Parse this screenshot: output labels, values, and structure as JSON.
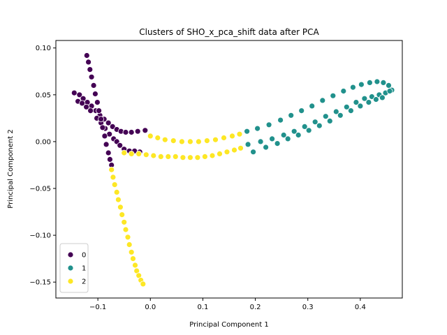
{
  "chart_data": {
    "type": "scatter",
    "title": "Clusters of SHO_x_pca_shift data after PCA",
    "xlabel": "Principal Component 1",
    "ylabel": "Principal Component 2",
    "xlim": [
      -0.18,
      0.48
    ],
    "ylim": [
      -0.167,
      0.108
    ],
    "xticks": [
      -0.1,
      0.0,
      0.1,
      0.2,
      0.3,
      0.4
    ],
    "xtick_labels": [
      "−0.1",
      "0.0",
      "0.1",
      "0.2",
      "0.3",
      "0.4"
    ],
    "yticks": [
      -0.15,
      -0.1,
      -0.05,
      0.0,
      0.05,
      0.1
    ],
    "ytick_labels": [
      "−0.15",
      "−0.10",
      "−0.05",
      "0.00",
      "0.05",
      "0.10"
    ],
    "grid": false,
    "legend_position": "lower-left",
    "series": [
      {
        "name": "0",
        "color": "#440154",
        "points": [
          [
            -0.145,
            0.052
          ],
          [
            -0.135,
            0.05
          ],
          [
            -0.128,
            0.046
          ],
          [
            -0.12,
            0.042
          ],
          [
            -0.112,
            0.038
          ],
          [
            -0.104,
            0.033
          ],
          [
            -0.096,
            0.028
          ],
          [
            -0.088,
            0.024
          ],
          [
            -0.08,
            0.02
          ],
          [
            -0.072,
            0.016
          ],
          [
            -0.064,
            0.013
          ],
          [
            -0.056,
            0.011
          ],
          [
            -0.047,
            0.01
          ],
          [
            -0.036,
            0.01
          ],
          [
            -0.024,
            0.011
          ],
          [
            -0.01,
            0.012
          ],
          [
            -0.138,
            0.043
          ],
          [
            -0.13,
            0.041
          ],
          [
            -0.122,
            0.037
          ],
          [
            -0.114,
            0.033
          ],
          [
            -0.102,
            0.025
          ],
          [
            -0.094,
            0.02
          ],
          [
            -0.086,
            0.014
          ],
          [
            -0.078,
            0.008
          ],
          [
            -0.07,
            0.003
          ],
          [
            -0.064,
            0.0
          ],
          [
            -0.058,
            -0.004
          ],
          [
            -0.05,
            -0.008
          ],
          [
            -0.04,
            -0.01
          ],
          [
            -0.03,
            -0.01
          ],
          [
            -0.02,
            -0.011
          ],
          [
            -0.121,
            0.092
          ],
          [
            -0.118,
            0.085
          ],
          [
            -0.115,
            0.077
          ],
          [
            -0.112,
            0.069
          ],
          [
            -0.108,
            0.06
          ],
          [
            -0.105,
            0.051
          ],
          [
            -0.101,
            0.042
          ],
          [
            -0.098,
            0.033
          ],
          [
            -0.094,
            0.024
          ],
          [
            -0.091,
            0.015
          ],
          [
            -0.087,
            0.006
          ],
          [
            -0.084,
            -0.003
          ],
          [
            -0.08,
            -0.012
          ],
          [
            -0.077,
            -0.019
          ],
          [
            -0.074,
            -0.025
          ]
        ]
      },
      {
        "name": "1",
        "color": "#21918c",
        "points": [
          [
            0.184,
            0.011
          ],
          [
            0.204,
            0.014
          ],
          [
            0.226,
            0.018
          ],
          [
            0.248,
            0.023
          ],
          [
            0.268,
            0.028
          ],
          [
            0.288,
            0.033
          ],
          [
            0.308,
            0.038
          ],
          [
            0.328,
            0.044
          ],
          [
            0.348,
            0.049
          ],
          [
            0.368,
            0.054
          ],
          [
            0.386,
            0.058
          ],
          [
            0.402,
            0.061
          ],
          [
            0.418,
            0.063
          ],
          [
            0.432,
            0.064
          ],
          [
            0.444,
            0.063
          ],
          [
            0.454,
            0.06
          ],
          [
            0.46,
            0.055
          ],
          [
            0.186,
            -0.003
          ],
          [
            0.21,
            0.0
          ],
          [
            0.232,
            0.003
          ],
          [
            0.254,
            0.007
          ],
          [
            0.274,
            0.011
          ],
          [
            0.294,
            0.016
          ],
          [
            0.314,
            0.021
          ],
          [
            0.334,
            0.027
          ],
          [
            0.354,
            0.032
          ],
          [
            0.374,
            0.037
          ],
          [
            0.392,
            0.042
          ],
          [
            0.408,
            0.046
          ],
          [
            0.422,
            0.048
          ],
          [
            0.436,
            0.05
          ],
          [
            0.448,
            0.052
          ],
          [
            0.456,
            0.054
          ],
          [
            0.196,
            -0.011
          ],
          [
            0.22,
            -0.006
          ],
          [
            0.242,
            -0.002
          ],
          [
            0.262,
            0.003
          ],
          [
            0.282,
            0.007
          ],
          [
            0.302,
            0.012
          ],
          [
            0.322,
            0.017
          ],
          [
            0.342,
            0.022
          ],
          [
            0.362,
            0.028
          ],
          [
            0.382,
            0.033
          ],
          [
            0.4,
            0.038
          ],
          [
            0.416,
            0.042
          ],
          [
            0.43,
            0.045
          ],
          [
            0.442,
            0.047
          ]
        ]
      },
      {
        "name": "2",
        "color": "#fde725",
        "points": [
          [
            0.0,
            0.006
          ],
          [
            0.014,
            0.004
          ],
          [
            0.028,
            0.002
          ],
          [
            0.044,
            0.001
          ],
          [
            0.06,
            0.0
          ],
          [
            0.076,
            0.0
          ],
          [
            0.092,
            0.0
          ],
          [
            0.108,
            0.001
          ],
          [
            0.124,
            0.002
          ],
          [
            0.14,
            0.004
          ],
          [
            0.156,
            0.006
          ],
          [
            0.17,
            0.008
          ],
          [
            -0.05,
            -0.012
          ],
          [
            -0.036,
            -0.013
          ],
          [
            -0.022,
            -0.013
          ],
          [
            -0.008,
            -0.014
          ],
          [
            0.006,
            -0.015
          ],
          [
            0.02,
            -0.016
          ],
          [
            0.034,
            -0.016
          ],
          [
            0.048,
            -0.016
          ],
          [
            0.062,
            -0.017
          ],
          [
            0.076,
            -0.017
          ],
          [
            0.09,
            -0.017
          ],
          [
            0.104,
            -0.016
          ],
          [
            0.118,
            -0.015
          ],
          [
            0.132,
            -0.013
          ],
          [
            0.146,
            -0.011
          ],
          [
            0.16,
            -0.009
          ],
          [
            0.172,
            -0.007
          ],
          [
            -0.074,
            -0.03
          ],
          [
            -0.071,
            -0.038
          ],
          [
            -0.068,
            -0.046
          ],
          [
            -0.064,
            -0.054
          ],
          [
            -0.061,
            -0.062
          ],
          [
            -0.057,
            -0.07
          ],
          [
            -0.054,
            -0.078
          ],
          [
            -0.05,
            -0.086
          ],
          [
            -0.047,
            -0.094
          ],
          [
            -0.043,
            -0.102
          ],
          [
            -0.04,
            -0.11
          ],
          [
            -0.036,
            -0.118
          ],
          [
            -0.033,
            -0.125
          ],
          [
            -0.029,
            -0.132
          ],
          [
            -0.026,
            -0.138
          ],
          [
            -0.022,
            -0.143
          ],
          [
            -0.018,
            -0.148
          ],
          [
            -0.014,
            -0.152
          ]
        ]
      }
    ]
  }
}
